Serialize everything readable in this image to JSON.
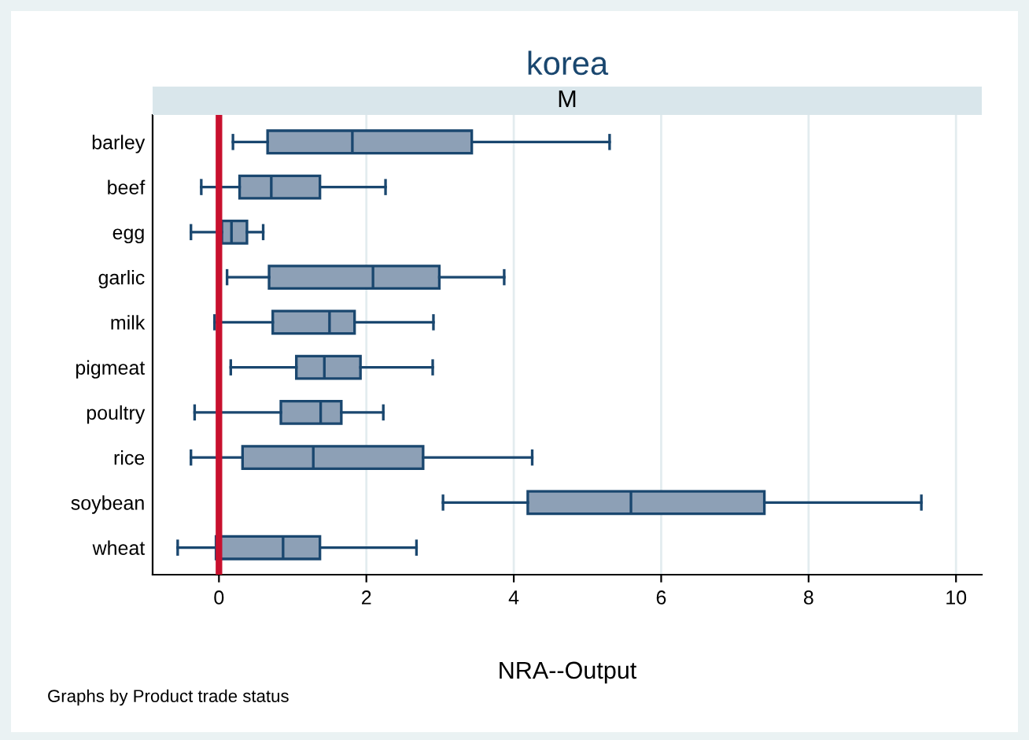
{
  "chart_data": {
    "type": "box",
    "orientation": "horizontal",
    "title": "korea",
    "subtitle": "M",
    "xlabel": "NRA--Output",
    "categories": [
      "barley",
      "beef",
      "egg",
      "garlic",
      "milk",
      "pigmeat",
      "poultry",
      "rice",
      "soybean",
      "wheat"
    ],
    "boxes": [
      {
        "low": 0.19,
        "q1": 0.66,
        "median": 1.81,
        "q3": 3.43,
        "high": 5.3
      },
      {
        "low": -0.24,
        "q1": 0.28,
        "median": 0.71,
        "q3": 1.37,
        "high": 2.26
      },
      {
        "low": -0.38,
        "q1": 0.04,
        "median": 0.17,
        "q3": 0.38,
        "high": 0.6
      },
      {
        "low": 0.11,
        "q1": 0.68,
        "median": 2.09,
        "q3": 2.99,
        "high": 3.87
      },
      {
        "low": -0.06,
        "q1": 0.73,
        "median": 1.5,
        "q3": 1.84,
        "high": 2.91
      },
      {
        "low": 0.16,
        "q1": 1.05,
        "median": 1.43,
        "q3": 1.92,
        "high": 2.9
      },
      {
        "low": -0.33,
        "q1": 0.84,
        "median": 1.38,
        "q3": 1.66,
        "high": 2.23
      },
      {
        "low": -0.38,
        "q1": 0.32,
        "median": 1.28,
        "q3": 2.77,
        "high": 4.25
      },
      {
        "low": 3.04,
        "q1": 4.19,
        "median": 5.59,
        "q3": 7.4,
        "high": 9.53
      },
      {
        "low": -0.56,
        "q1": -0.04,
        "median": 0.87,
        "q3": 1.37,
        "high": 2.68
      }
    ],
    "color": "#8da0b6",
    "xlim": [
      -0.9,
      10.35
    ],
    "xticks": [
      0,
      2,
      4,
      6,
      8,
      10
    ],
    "grid": "x",
    "ref_lines": [
      {
        "axis": "x",
        "value": 0,
        "color": "#c8102e"
      }
    ],
    "annotations": [
      "Graphs by Product trade status"
    ]
  }
}
